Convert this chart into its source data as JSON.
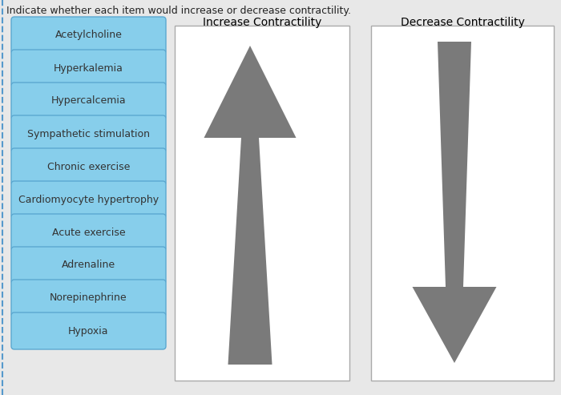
{
  "title": "Indicate whether each item would increase or decrease contractility.",
  "title_fontsize": 9,
  "labels": [
    "Acetylcholine",
    "Hyperkalemia",
    "Hypercalcemia",
    "Sympathetic stimulation",
    "Chronic exercise",
    "Cardiomyocyte hypertrophy",
    "Acute exercise",
    "Adrenaline",
    "Norepinephrine",
    "Hypoxia"
  ],
  "box_color": "#87CEEB",
  "box_edge_color": "#5BA8D0",
  "box_text_color": "#333333",
  "label_fontsize": 9,
  "increase_title": "Increase Contractility",
  "decrease_title": "Decrease Contractility",
  "panel_title_fontsize": 10,
  "arrow_color": "#7a7a7a",
  "background_color": "#ffffff",
  "fig_bg_color": "#e8e8e8",
  "left_border_color": "#5599cc"
}
